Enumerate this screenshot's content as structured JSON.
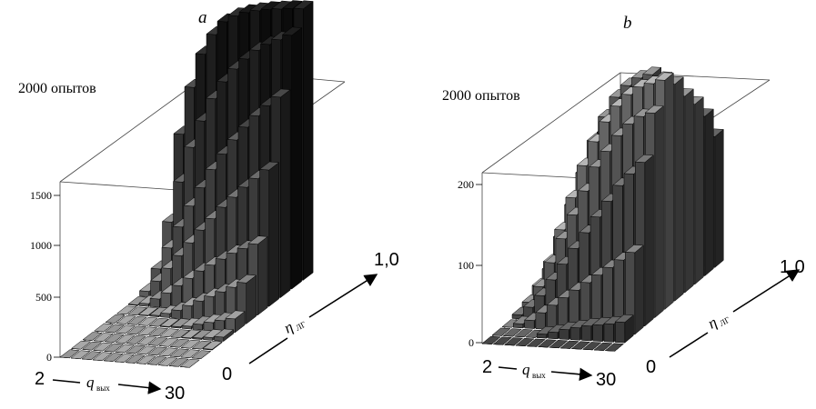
{
  "figure": {
    "panels": [
      {
        "letter": "a",
        "caption": "2000 опытов",
        "y_ticks": [
          "0",
          "500",
          "1000",
          "1500"
        ],
        "x_axis": {
          "start": "2",
          "end": "30",
          "name": "q",
          "sub": "вых"
        },
        "depth_axis": {
          "start": "0",
          "end": "1,0",
          "name": "η",
          "sub": "ЛГ"
        }
      },
      {
        "letter": "b",
        "caption": "2000 опытов",
        "y_ticks": [
          "0",
          "100",
          "200"
        ],
        "x_axis": {
          "start": "2",
          "end": "30",
          "name": "q",
          "sub": "вых"
        },
        "depth_axis": {
          "start": "0",
          "end": "1,0",
          "name": "η",
          "sub": "ЛГ"
        }
      }
    ]
  },
  "chart_data": [
    {
      "type": "bar3d",
      "caption": "2000 опытов",
      "x_range": [
        2,
        30
      ],
      "depth_range": [
        0,
        1.0
      ],
      "ylim": [
        0,
        2000
      ],
      "y_ticks": [
        0,
        500,
        1000,
        1500
      ],
      "series": [
        {
          "name": "",
          "depth": 0.0,
          "values": [
            0,
            0,
            0,
            0,
            0,
            0,
            0,
            0,
            0,
            0,
            0,
            0
          ]
        },
        {
          "name": "",
          "depth": 0.1,
          "values": [
            0,
            0,
            0,
            0,
            0,
            0,
            0,
            0,
            0,
            0,
            0,
            0
          ]
        },
        {
          "name": "",
          "depth": 0.2,
          "values": [
            0,
            0,
            0,
            0,
            0,
            0,
            0,
            0,
            0,
            0,
            0,
            5
          ]
        },
        {
          "name": "",
          "depth": 0.3,
          "values": [
            0,
            0,
            0,
            0,
            0,
            0,
            0,
            0,
            5,
            10,
            20,
            30
          ]
        },
        {
          "name": "",
          "depth": 0.4,
          "values": [
            0,
            0,
            0,
            0,
            0,
            5,
            10,
            20,
            40,
            60,
            80,
            100
          ]
        },
        {
          "name": "",
          "depth": 0.5,
          "values": [
            0,
            0,
            5,
            10,
            30,
            60,
            100,
            140,
            180,
            220,
            260,
            300
          ]
        },
        {
          "name": "",
          "depth": 0.6,
          "values": [
            5,
            20,
            60,
            110,
            170,
            230,
            290,
            340,
            390,
            440,
            480,
            520
          ]
        },
        {
          "name": "",
          "depth": 0.7,
          "values": [
            40,
            120,
            220,
            320,
            420,
            520,
            610,
            700,
            780,
            860,
            930,
            1000
          ]
        },
        {
          "name": "",
          "depth": 0.8,
          "values": [
            140,
            300,
            460,
            620,
            760,
            900,
            1020,
            1130,
            1230,
            1320,
            1400,
            1470
          ]
        },
        {
          "name": "",
          "depth": 0.9,
          "values": [
            420,
            720,
            980,
            1180,
            1350,
            1480,
            1580,
            1660,
            1730,
            1780,
            1820,
            1860
          ]
        },
        {
          "name": "",
          "depth": 1.0,
          "values": [
            1000,
            1350,
            1600,
            1750,
            1850,
            1900,
            1930,
            1950,
            1965,
            1975,
            1985,
            1990
          ]
        }
      ]
    },
    {
      "type": "bar3d",
      "caption": "2000 опытов",
      "x_range": [
        2,
        30
      ],
      "depth_range": [
        0,
        1.0
      ],
      "ylim": [
        0,
        300
      ],
      "y_ticks": [
        0,
        100,
        200
      ],
      "series": [
        {
          "name": "",
          "depth": 0.0,
          "values": [
            0,
            0,
            0,
            0,
            0,
            0,
            0,
            0,
            0,
            0,
            0,
            0
          ]
        },
        {
          "name": "",
          "depth": 0.1,
          "values": [
            0,
            0,
            0,
            0,
            5,
            8,
            12,
            15,
            18,
            20,
            22,
            25
          ]
        },
        {
          "name": "",
          "depth": 0.2,
          "values": [
            0,
            5,
            10,
            20,
            30,
            40,
            50,
            60,
            70,
            80,
            90,
            100
          ]
        },
        {
          "name": "",
          "depth": 0.3,
          "values": [
            5,
            15,
            30,
            50,
            70,
            90,
            110,
            130,
            150,
            170,
            185,
            200
          ]
        },
        {
          "name": "",
          "depth": 0.4,
          "values": [
            10,
            30,
            60,
            90,
            120,
            150,
            180,
            200,
            220,
            235,
            245,
            250
          ]
        },
        {
          "name": "",
          "depth": 0.5,
          "values": [
            20,
            50,
            90,
            130,
            170,
            200,
            225,
            245,
            260,
            270,
            275,
            280
          ]
        },
        {
          "name": "",
          "depth": 0.6,
          "values": [
            30,
            70,
            110,
            150,
            190,
            220,
            245,
            260,
            270,
            275,
            270,
            265
          ]
        },
        {
          "name": "",
          "depth": 0.7,
          "values": [
            35,
            75,
            115,
            155,
            190,
            215,
            235,
            250,
            255,
            255,
            250,
            240
          ]
        },
        {
          "name": "",
          "depth": 0.8,
          "values": [
            30,
            65,
            100,
            135,
            165,
            190,
            210,
            225,
            230,
            230,
            225,
            220
          ]
        },
        {
          "name": "",
          "depth": 0.9,
          "values": [
            20,
            45,
            70,
            100,
            125,
            150,
            170,
            185,
            195,
            200,
            200,
            195
          ]
        },
        {
          "name": "",
          "depth": 1.0,
          "values": [
            10,
            25,
            45,
            65,
            85,
            105,
            120,
            135,
            145,
            150,
            155,
            160
          ]
        }
      ]
    }
  ]
}
